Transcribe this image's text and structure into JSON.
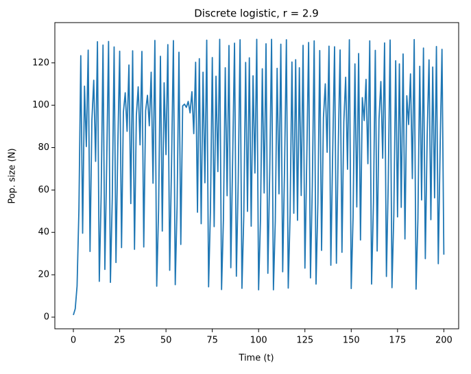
{
  "chart_data": {
    "type": "line",
    "title": "Discrete logistic, r = 2.9",
    "x_label": "Time (t)",
    "y_label": "Pop. size (N)",
    "color": "#1f77b4",
    "x": [
      0,
      1,
      2,
      3,
      4,
      5,
      6,
      7,
      8,
      9,
      10,
      11,
      12,
      13,
      14,
      15,
      16,
      17,
      18,
      19,
      20,
      21,
      22,
      23,
      24,
      25,
      26,
      27,
      28,
      29,
      30,
      31,
      32,
      33,
      34,
      35,
      36,
      37,
      38,
      39,
      40,
      41,
      42,
      43,
      44,
      45,
      46,
      47,
      48,
      49,
      50,
      51,
      52,
      53,
      54,
      55,
      56,
      57,
      58,
      59,
      60,
      61,
      62,
      63,
      64,
      65,
      66,
      67,
      68,
      69,
      70,
      71,
      72,
      73,
      74,
      75,
      76,
      77,
      78,
      79,
      80,
      81,
      82,
      83,
      84,
      85,
      86,
      87,
      88,
      89,
      90,
      91,
      92,
      93,
      94,
      95,
      96,
      97,
      98,
      99,
      100,
      101,
      102,
      103,
      104,
      105,
      106,
      107,
      108,
      109,
      110,
      111,
      112,
      113,
      114,
      115,
      116,
      117,
      118,
      119,
      120,
      121,
      122,
      123,
      124,
      125,
      126,
      127,
      128,
      129,
      130,
      131,
      132,
      133,
      134,
      135,
      136,
      137,
      138,
      139,
      140,
      141,
      142,
      143,
      144,
      145,
      146,
      147,
      148,
      149,
      150,
      151,
      152,
      153,
      154,
      155,
      156,
      157,
      158,
      159,
      160,
      161,
      162,
      163,
      164,
      165,
      166,
      167,
      168,
      169,
      170,
      171,
      172,
      173,
      174,
      175,
      176,
      177,
      178,
      179,
      180,
      181,
      182,
      183,
      184,
      185,
      186,
      187,
      188,
      189,
      190,
      191,
      192,
      193,
      194,
      195,
      196,
      197,
      198,
      199,
      200
    ],
    "values": [
      1,
      3.9,
      14.7,
      50.9,
      123.4,
      39.6,
      109,
      80.5,
      126,
      31,
      93,
      111.8,
      73.5,
      130,
      16.9,
      57.6,
      128.4,
      22.5,
      73.1,
      130.1,
      16.4,
      56.1,
      127.5,
      25.8,
      81.2,
      125.5,
      32.8,
      96.7,
      105.9,
      87.7,
      119,
      53.6,
      125.7,
      32,
      95.1,
      108.7,
      81.3,
      125.4,
      33.1,
      97.4,
      104.7,
      90.3,
      115.6,
      63.2,
      130.6,
      14.6,
      50.6,
      123.1,
      40.6,
      110.6,
      76.7,
      128.6,
      22.1,
      72.1,
      130.5,
      15.3,
      52.7,
      125,
      34.3,
      99.7,
      100.5,
      99,
      101.8,
      96.4,
      106.4,
      86.6,
      120.3,
      49.5,
      122,
      44.1,
      115.6,
      63.4,
      130.7,
      14.3,
      50,
      122.5,
      42.7,
      113.7,
      68.7,
      131.1,
      13,
      45.7,
      117.7,
      57.3,
      128.2,
      23.3,
      75.1,
      129.3,
      19.3,
      64.4,
      130.9,
      13.6,
      47.8,
      120.2,
      49.9,
      122.4,
      42.9,
      113.9,
      68,
      131.1,
      12.9,
      45.4,
      117.2,
      58.6,
      129,
      20.7,
      68.2,
      131.1,
      12.9,
      45.5,
      117.4,
      58.2,
      128.8,
      21.4,
      70.2,
      130.9,
      13.7,
      48.1,
      120.4,
      49,
      121.5,
      45.7,
      117.7,
      57.4,
      128.3,
      23.1,
      74.6,
      129.6,
      18.5,
      62.1,
      130.4,
      15.6,
      53.8,
      125.8,
      31.5,
      94.2,
      110.1,
      77.8,
      127.9,
      24.5,
      78.2,
      127.6,
      25.4,
      80.4,
      126.1,
      30.6,
      92.1,
      113.2,
      69.8,
      130.9,
      13.5,
      47.2,
      119.5,
      52,
      124.4,
      36.4,
      103.6,
      92.8,
      112.2,
      72.4,
      130.4,
      15.6,
      53.9,
      125.9,
      31.2,
      93.4,
      111.2,
      75,
      129.4,
      19.2,
      64.1,
      130.8,
      13.9,
      48.6,
      121,
      47.3,
      119.5,
      51.8,
      124.2,
      36.9,
      104.5,
      90.9,
      114.8,
      65.4,
      131,
      13.2,
      46.3,
      118.4,
      55.3,
      127,
      27.6,
      85.5,
      121.4,
      46,
      118,
      56.3,
      127.7,
      25.2,
      79.9,
      126.4,
      29.5
    ],
    "xlim": [
      -10,
      208
    ],
    "ylim": [
      -5.5,
      139
    ],
    "xticks": [
      0,
      25,
      50,
      75,
      100,
      125,
      150,
      175,
      200
    ],
    "yticks": [
      0,
      20,
      40,
      60,
      80,
      100,
      120
    ]
  }
}
